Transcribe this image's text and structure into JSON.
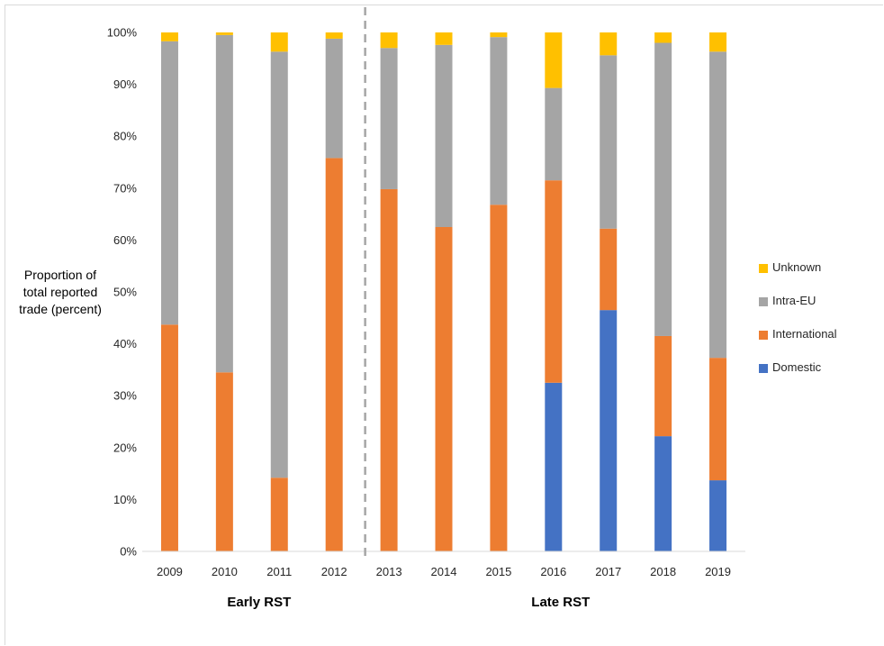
{
  "chart_data": {
    "type": "bar",
    "stacked": true,
    "categories": [
      "2009",
      "2010",
      "2011",
      "2012",
      "2013",
      "2014",
      "2015",
      "2016",
      "2017",
      "2018",
      "2019"
    ],
    "series": [
      {
        "name": "Domestic",
        "color": "#4472C4",
        "values": [
          0,
          0,
          0,
          0,
          0,
          0,
          0,
          32.5,
          46.5,
          22.2,
          13.7
        ]
      },
      {
        "name": "International",
        "color": "#ED7D31",
        "values": [
          43.7,
          34.5,
          14.2,
          75.8,
          69.8,
          62.5,
          66.8,
          39.0,
          15.7,
          19.3,
          23.6
        ]
      },
      {
        "name": "Intra-EU",
        "color": "#A5A5A5",
        "values": [
          54.6,
          65.0,
          82.1,
          23.0,
          27.2,
          35.1,
          32.3,
          17.8,
          33.4,
          56.5,
          59.0
        ]
      },
      {
        "name": "Unknown",
        "color": "#FFC000",
        "values": [
          1.7,
          0.5,
          3.7,
          1.2,
          3.0,
          2.4,
          0.9,
          10.7,
          4.4,
          2.0,
          3.7
        ]
      }
    ],
    "ylabel_lines": [
      "Proportion of",
      "total reported",
      "trade (percent)"
    ],
    "ylim": [
      0,
      100
    ],
    "yticks": [
      "0%",
      "10%",
      "20%",
      "30%",
      "40%",
      "50%",
      "60%",
      "70%",
      "80%",
      "90%",
      "100%"
    ],
    "groups": [
      {
        "label": "Early RST",
        "years": [
          "2009",
          "2012"
        ]
      },
      {
        "label": "Late RST",
        "years": [
          "2013",
          "2019"
        ]
      }
    ],
    "divider_between": [
      "2012",
      "2013"
    ],
    "legend_position": "right",
    "legend_order": [
      "Unknown",
      "Intra-EU",
      "International",
      "Domestic"
    ],
    "grid": false
  }
}
